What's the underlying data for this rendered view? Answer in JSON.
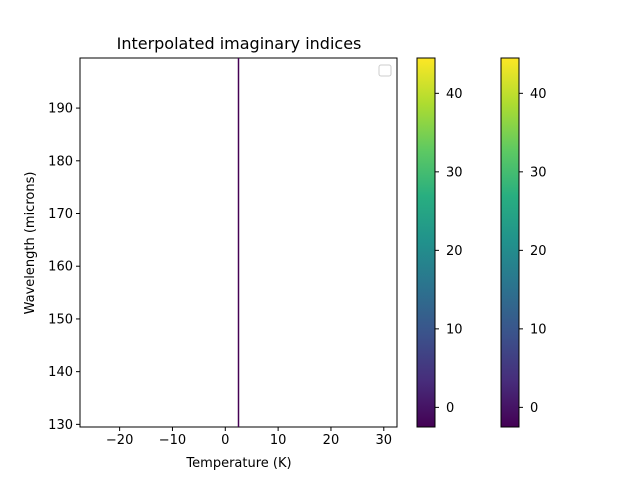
{
  "colors": {
    "line": "#440154",
    "axis": "#000000",
    "background": "#ffffff"
  },
  "chart_data": {
    "type": "line",
    "title": "Interpolated imaginary indices",
    "xlabel": "Temperature (K)",
    "ylabel": "Wavelength (microns)",
    "xlim": [
      -27.5,
      32.5
    ],
    "ylim": [
      129.5,
      199.5
    ],
    "xticks": [
      -20,
      -10,
      0,
      10,
      20,
      30
    ],
    "xtick_labels": [
      "−20",
      "−10",
      "0",
      "10",
      "20",
      "30"
    ],
    "yticks": [
      130,
      140,
      150,
      160,
      170,
      180,
      190
    ],
    "ytick_labels": [
      "130",
      "140",
      "150",
      "160",
      "170",
      "180",
      "190"
    ],
    "grid": false,
    "legend": {
      "placement": "top-right",
      "entries": []
    },
    "series": [
      {
        "x": [
          2.5,
          2.5
        ],
        "y": [
          129.5,
          199.5
        ]
      }
    ],
    "colorbars": [
      {
        "colormap": "viridis",
        "range": [
          -2.5,
          44.5
        ],
        "ticks": [
          0,
          10,
          20,
          30,
          40
        ],
        "tick_labels": [
          "0",
          "10",
          "20",
          "30",
          "40"
        ]
      },
      {
        "colormap": "viridis",
        "range": [
          -2.5,
          44.5
        ],
        "ticks": [
          0,
          10,
          20,
          30,
          40
        ],
        "tick_labels": [
          "0",
          "10",
          "20",
          "30",
          "40"
        ]
      }
    ]
  }
}
